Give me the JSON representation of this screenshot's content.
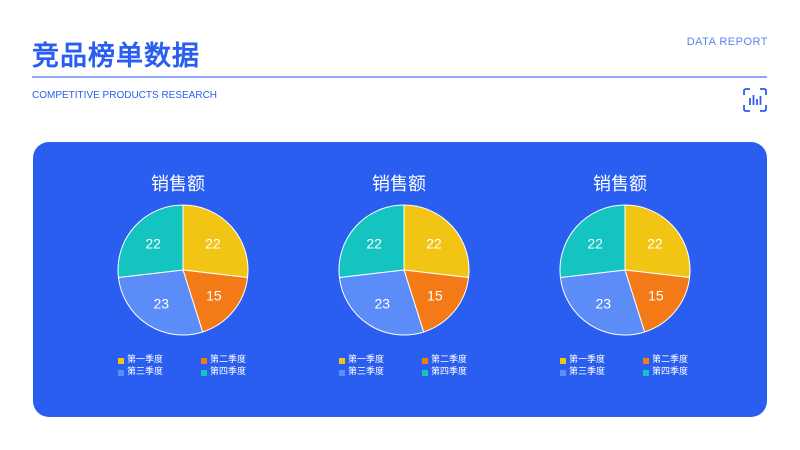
{
  "header": {
    "title": "竞品榜单数据",
    "report_label": "DATA  REPORT",
    "subtitle": "COMPETITIVE PRODUCTS RESEARCH"
  },
  "colors": {
    "accent": "#2a5ef0",
    "panel": "#2a5ef0",
    "q1": "#f2c414",
    "q2": "#f47a17",
    "q3": "#5b8cf7",
    "q4": "#13c4c0"
  },
  "icons": {
    "header_right": "scan-chart-icon"
  },
  "chart_data": [
    {
      "type": "pie",
      "title": "销售额",
      "categories": [
        "第一季度",
        "第二季度",
        "第三季度",
        "第四季度"
      ],
      "values": [
        22,
        15,
        23,
        22
      ],
      "colors": [
        "#f2c414",
        "#f47a17",
        "#5b8cf7",
        "#13c4c0"
      ],
      "legend_position": "bottom"
    },
    {
      "type": "pie",
      "title": "销售额",
      "categories": [
        "第一季度",
        "第二季度",
        "第三季度",
        "第四季度"
      ],
      "values": [
        22,
        15,
        23,
        22
      ],
      "colors": [
        "#f2c414",
        "#f47a17",
        "#5b8cf7",
        "#13c4c0"
      ],
      "legend_position": "bottom"
    },
    {
      "type": "pie",
      "title": "销售额",
      "categories": [
        "第一季度",
        "第二季度",
        "第三季度",
        "第四季度"
      ],
      "values": [
        22,
        15,
        23,
        22
      ],
      "colors": [
        "#f2c414",
        "#f47a17",
        "#5b8cf7",
        "#13c4c0"
      ],
      "legend_position": "bottom"
    }
  ]
}
